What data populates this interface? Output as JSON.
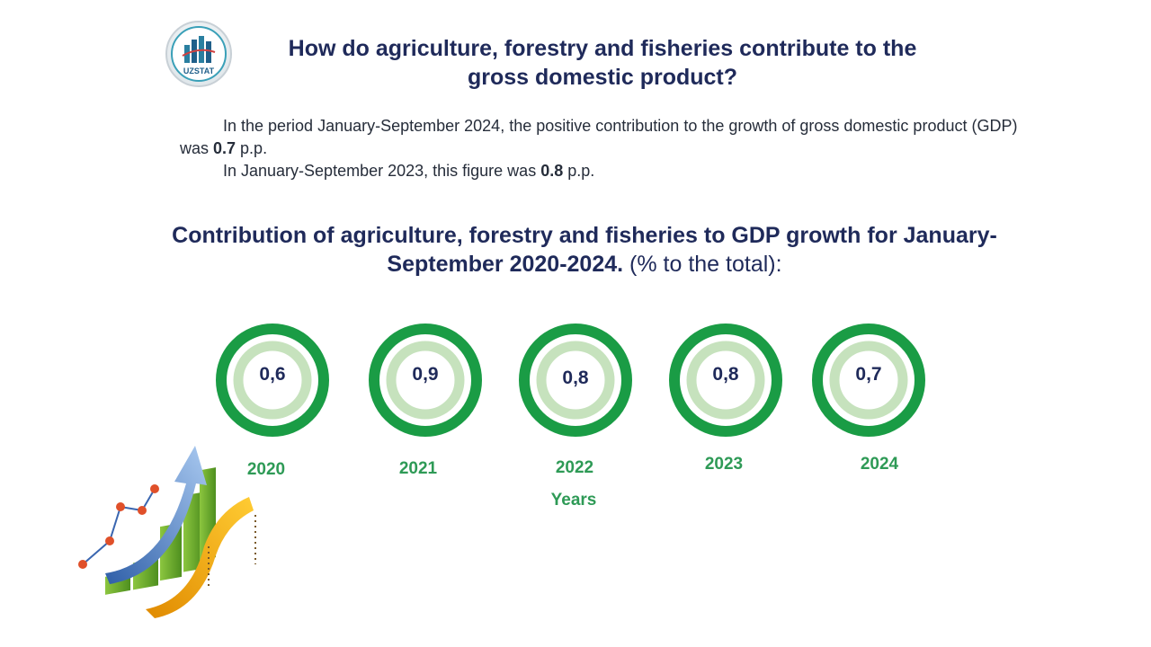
{
  "logo_text": "UZSTAT",
  "title": {
    "line1": "How do agriculture, forestry and fisheries contribute to the",
    "line2": "gross domestic product?"
  },
  "paragraph": {
    "p1_before": "In the period January-September 2024, the positive contribution to the growth of gross domestic product (GDP) was ",
    "p1_value": "0.7",
    "p1_after": " p.p.",
    "p2_before": "In January-September 2023, this figure was ",
    "p2_value": "0.8",
    "p2_after": " p.p."
  },
  "chart_data": {
    "type": "table",
    "title_bold": "Contribution of agriculture, forestry and fisheries to GDP growth for January-September 2020-2024.",
    "title_rest": " (% to the total):",
    "xlabel": "Years",
    "categories": [
      "2020",
      "2021",
      "2022",
      "2023",
      "2024"
    ],
    "values": [
      0.6,
      0.9,
      0.8,
      0.8,
      0.7
    ],
    "value_labels": [
      "0,6",
      "0,9",
      "0,8",
      "0,8",
      "0,7"
    ]
  },
  "colors": {
    "ring_outer": "#1a9c45",
    "ring_inner": "#c6e2bd",
    "title_text": "#1f2a5a",
    "year_text": "#2e9a56"
  }
}
